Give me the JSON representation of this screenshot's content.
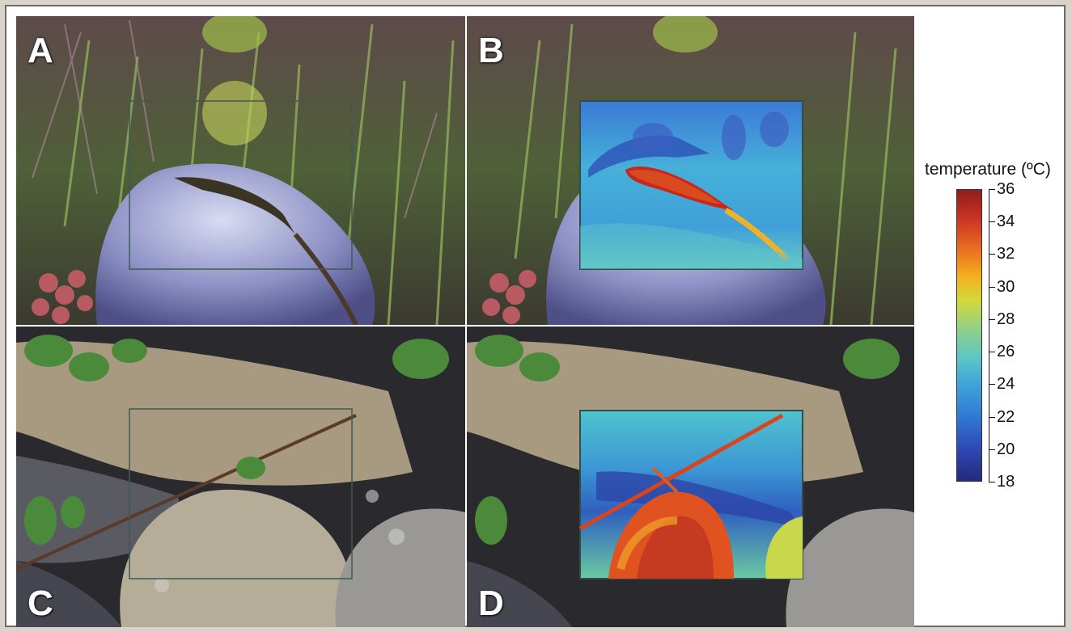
{
  "panels": [
    {
      "label": "A",
      "scene": "lizard on rock, visible light"
    },
    {
      "label": "B",
      "scene": "lizard on rock, thermal inset"
    },
    {
      "label": "C",
      "scene": "rock crevice, visible light"
    },
    {
      "label": "D",
      "scene": "rock crevice, thermal inset"
    }
  ],
  "colorbar": {
    "title": "temperature (ºC)",
    "ticks": [
      "36",
      "34",
      "32",
      "30",
      "28",
      "26",
      "24",
      "22",
      "20",
      "18"
    ]
  }
}
